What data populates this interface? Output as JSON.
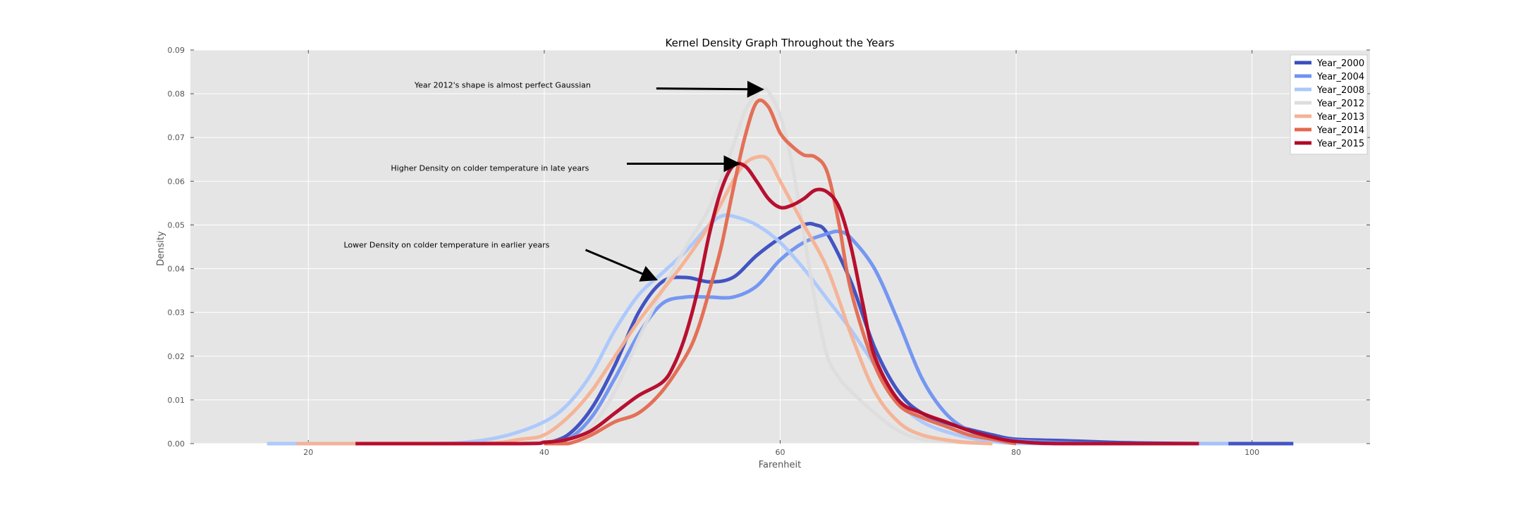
{
  "chart_data": {
    "type": "line",
    "title": "Kernel Density Graph Throughout the Years",
    "xlabel": "Farenheit",
    "ylabel": "Density",
    "xlim": [
      10,
      110
    ],
    "ylim": [
      0,
      0.09
    ],
    "xticks": [
      20,
      40,
      60,
      80,
      100
    ],
    "yticks": [
      "0.00",
      "0.01",
      "0.02",
      "0.03",
      "0.04",
      "0.05",
      "0.06",
      "0.07",
      "0.08",
      "0.09"
    ],
    "grid": true,
    "legend_position": "top-right",
    "series": [
      {
        "name": "Year_2000",
        "color": "#3a4cc0",
        "points": [
          [
            40,
            0
          ],
          [
            42,
            0.002
          ],
          [
            44,
            0.008
          ],
          [
            46,
            0.018
          ],
          [
            48,
            0.03
          ],
          [
            50,
            0.037
          ],
          [
            52,
            0.038
          ],
          [
            54,
            0.037
          ],
          [
            56,
            0.038
          ],
          [
            58,
            0.043
          ],
          [
            60,
            0.047
          ],
          [
            62,
            0.05
          ],
          [
            63,
            0.05
          ],
          [
            64,
            0.048
          ],
          [
            66,
            0.037
          ],
          [
            68,
            0.022
          ],
          [
            70,
            0.012
          ],
          [
            72,
            0.007
          ],
          [
            75,
            0.004
          ],
          [
            78,
            0.002
          ],
          [
            80,
            0.001
          ],
          [
            84,
            0.0007
          ],
          [
            88,
            0.0003
          ],
          [
            92,
            0.0001
          ],
          [
            96,
            0
          ],
          [
            103.5,
            0
          ]
        ]
      },
      {
        "name": "Year_2004",
        "color": "#6f92f2",
        "points": [
          [
            40,
            0
          ],
          [
            42,
            0.001
          ],
          [
            44,
            0.006
          ],
          [
            46,
            0.015
          ],
          [
            48,
            0.025
          ],
          [
            50,
            0.032
          ],
          [
            52,
            0.0335
          ],
          [
            54,
            0.0335
          ],
          [
            56,
            0.0335
          ],
          [
            58,
            0.036
          ],
          [
            60,
            0.042
          ],
          [
            62,
            0.046
          ],
          [
            64,
            0.048
          ],
          [
            65,
            0.0485
          ],
          [
            66,
            0.047
          ],
          [
            68,
            0.04
          ],
          [
            70,
            0.028
          ],
          [
            72,
            0.015
          ],
          [
            74,
            0.007
          ],
          [
            76,
            0.003
          ],
          [
            78,
            0.0015
          ],
          [
            80,
            0.0007
          ],
          [
            84,
            0.0002
          ],
          [
            88,
            0
          ]
        ]
      },
      {
        "name": "Year_2008",
        "color": "#aac7fd",
        "points": [
          [
            16.5,
            0
          ],
          [
            30,
            0
          ],
          [
            34,
            0.0005
          ],
          [
            37,
            0.002
          ],
          [
            40,
            0.005
          ],
          [
            42,
            0.009
          ],
          [
            44,
            0.016
          ],
          [
            46,
            0.026
          ],
          [
            48,
            0.034
          ],
          [
            50,
            0.039
          ],
          [
            52,
            0.044
          ],
          [
            54,
            0.05
          ],
          [
            55,
            0.052
          ],
          [
            56,
            0.052
          ],
          [
            58,
            0.05
          ],
          [
            60,
            0.046
          ],
          [
            62,
            0.04
          ],
          [
            64,
            0.033
          ],
          [
            66,
            0.026
          ],
          [
            68,
            0.018
          ],
          [
            70,
            0.01
          ],
          [
            72,
            0.005
          ],
          [
            75,
            0.002
          ],
          [
            78,
            0.0005
          ],
          [
            82,
            0
          ],
          [
            98,
            0
          ]
        ]
      },
      {
        "name": "Year_2012",
        "color": "#dddddd",
        "points": [
          [
            38,
            0
          ],
          [
            42,
            0.001
          ],
          [
            44,
            0.004
          ],
          [
            46,
            0.012
          ],
          [
            48,
            0.024
          ],
          [
            50,
            0.035
          ],
          [
            52,
            0.045
          ],
          [
            54,
            0.054
          ],
          [
            56,
            0.068
          ],
          [
            57,
            0.076
          ],
          [
            58,
            0.08
          ],
          [
            58.5,
            0.081
          ],
          [
            59,
            0.0805
          ],
          [
            60,
            0.075
          ],
          [
            61,
            0.064
          ],
          [
            62,
            0.048
          ],
          [
            63,
            0.032
          ],
          [
            64,
            0.02
          ],
          [
            65,
            0.015
          ],
          [
            66,
            0.012
          ],
          [
            68,
            0.007
          ],
          [
            70,
            0.003
          ],
          [
            72,
            0.001
          ],
          [
            75,
            0.0003
          ],
          [
            78,
            0
          ]
        ]
      },
      {
        "name": "Year_2013",
        "color": "#f5b194",
        "points": [
          [
            19,
            0
          ],
          [
            34,
            0
          ],
          [
            38,
            0.001
          ],
          [
            40,
            0.002
          ],
          [
            42,
            0.006
          ],
          [
            44,
            0.012
          ],
          [
            46,
            0.02
          ],
          [
            48,
            0.028
          ],
          [
            50,
            0.035
          ],
          [
            52,
            0.042
          ],
          [
            54,
            0.05
          ],
          [
            56,
            0.06
          ],
          [
            57,
            0.064
          ],
          [
            58,
            0.0655
          ],
          [
            59,
            0.065
          ],
          [
            60,
            0.06
          ],
          [
            62,
            0.05
          ],
          [
            64,
            0.04
          ],
          [
            66,
            0.025
          ],
          [
            68,
            0.012
          ],
          [
            70,
            0.005
          ],
          [
            72,
            0.002
          ],
          [
            75,
            0.0005
          ],
          [
            78,
            0
          ]
        ]
      },
      {
        "name": "Year_2014",
        "color": "#e3694f",
        "points": [
          [
            40,
            0
          ],
          [
            42,
            0
          ],
          [
            44,
            0.002
          ],
          [
            46,
            0.005
          ],
          [
            48,
            0.007
          ],
          [
            50,
            0.012
          ],
          [
            52,
            0.02
          ],
          [
            53,
            0.026
          ],
          [
            54,
            0.035
          ],
          [
            55,
            0.045
          ],
          [
            56,
            0.058
          ],
          [
            57,
            0.07
          ],
          [
            58,
            0.078
          ],
          [
            59,
            0.077
          ],
          [
            60,
            0.071
          ],
          [
            61,
            0.068
          ],
          [
            62,
            0.066
          ],
          [
            63,
            0.0655
          ],
          [
            64,
            0.062
          ],
          [
            65,
            0.05
          ],
          [
            66,
            0.035
          ],
          [
            68,
            0.018
          ],
          [
            70,
            0.009
          ],
          [
            72,
            0.006
          ],
          [
            74,
            0.004
          ],
          [
            76,
            0.002
          ],
          [
            78,
            0.001
          ],
          [
            80,
            0
          ]
        ]
      },
      {
        "name": "Year_2015",
        "color": "#b40426",
        "points": [
          [
            24,
            0
          ],
          [
            38,
            0
          ],
          [
            40,
            0.0003
          ],
          [
            42,
            0.001
          ],
          [
            44,
            0.003
          ],
          [
            46,
            0.007
          ],
          [
            48,
            0.011
          ],
          [
            50,
            0.014
          ],
          [
            51,
            0.018
          ],
          [
            52,
            0.025
          ],
          [
            53,
            0.035
          ],
          [
            54,
            0.048
          ],
          [
            55,
            0.058
          ],
          [
            56,
            0.0635
          ],
          [
            57,
            0.0635
          ],
          [
            58,
            0.06
          ],
          [
            59,
            0.056
          ],
          [
            60,
            0.054
          ],
          [
            61,
            0.0545
          ],
          [
            62,
            0.056
          ],
          [
            63,
            0.058
          ],
          [
            64,
            0.0575
          ],
          [
            65,
            0.054
          ],
          [
            66,
            0.045
          ],
          [
            67,
            0.032
          ],
          [
            68,
            0.02
          ],
          [
            70,
            0.01
          ],
          [
            72,
            0.007
          ],
          [
            74,
            0.005
          ],
          [
            76,
            0.003
          ],
          [
            78,
            0.0015
          ],
          [
            80,
            0.0005
          ],
          [
            84,
            0
          ],
          [
            95.5,
            0
          ]
        ]
      }
    ],
    "annotations": [
      {
        "text": "Year 2012's shape is almost perfect Gaussian",
        "text_x": 29,
        "text_y": 0.082,
        "arrow_from": [
          49.5,
          0.0812
        ],
        "arrow_to": [
          58.5,
          0.081
        ]
      },
      {
        "text": "Higher Density on colder temperature in late years",
        "text_x": 27,
        "text_y": 0.063,
        "arrow_from": [
          47,
          0.064
        ],
        "arrow_to": [
          56.5,
          0.064
        ]
      },
      {
        "text": "Lower Density on colder temperature in earlier years",
        "text_x": 23,
        "text_y": 0.0455,
        "arrow_from": [
          43.5,
          0.0443
        ],
        "arrow_to": [
          49.5,
          0.0375
        ]
      }
    ]
  }
}
